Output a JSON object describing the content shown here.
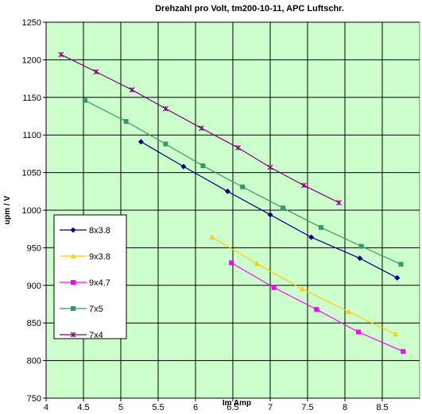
{
  "chart_data": {
    "type": "line",
    "title": "Drehzahl pro Volt, tm200-10-11, APC Luftschr.",
    "xlabel": "Im Amp",
    "ylabel": "upm / V",
    "xlim": [
      4,
      9
    ],
    "ylim": [
      750,
      1250
    ],
    "xticks": [
      "4",
      "4,5",
      "5",
      "5,5",
      "6",
      "6,5",
      "7",
      "7,5",
      "8",
      "8,5"
    ],
    "yticks": [
      "750",
      "800",
      "850",
      "900",
      "950",
      "1000",
      "1050",
      "1100",
      "1150",
      "1200",
      "1250"
    ],
    "xtick_values": [
      4,
      4.5,
      5,
      5.5,
      6,
      6.5,
      7,
      7.5,
      8,
      8.5
    ],
    "ytick_values": [
      750,
      800,
      850,
      900,
      950,
      1000,
      1050,
      1100,
      1150,
      1200,
      1250
    ],
    "grid": true,
    "plot_background": "#ccffcc",
    "legend_position": "left-bottom inside",
    "series": [
      {
        "name": "8x3.8",
        "color": "#000080",
        "marker": "diamond",
        "x": [
          5.27,
          5.84,
          6.43,
          7.0,
          7.55,
          8.2,
          8.7
        ],
        "y": [
          1091,
          1058,
          1025,
          994,
          964,
          936,
          910
        ]
      },
      {
        "name": "9x3.8",
        "color": "#ffcc00",
        "marker": "triangle",
        "x": [
          6.22,
          6.82,
          7.43,
          8.05,
          8.68
        ],
        "y": [
          964,
          929,
          895,
          865,
          835
        ]
      },
      {
        "name": "9x4.7",
        "color": "#ff00ff",
        "marker": "square",
        "x": [
          6.48,
          7.05,
          7.62,
          8.18,
          8.78
        ],
        "y": [
          930,
          897,
          868,
          838,
          812
        ]
      },
      {
        "name": "7x5",
        "color": "#339966",
        "marker": "square",
        "x": [
          4.52,
          5.07,
          5.6,
          6.1,
          6.63,
          7.17,
          7.68,
          8.22,
          8.75
        ],
        "y": [
          1146,
          1118,
          1088,
          1059,
          1031,
          1003,
          977,
          952,
          928
        ]
      },
      {
        "name": "7x4",
        "color": "#800080",
        "marker": "star",
        "x": [
          4.2,
          4.67,
          5.15,
          5.6,
          6.08,
          6.57,
          7.0,
          7.45,
          7.92
        ],
        "y": [
          1207,
          1184,
          1160,
          1135,
          1109,
          1083,
          1057,
          1033,
          1010
        ]
      }
    ]
  }
}
